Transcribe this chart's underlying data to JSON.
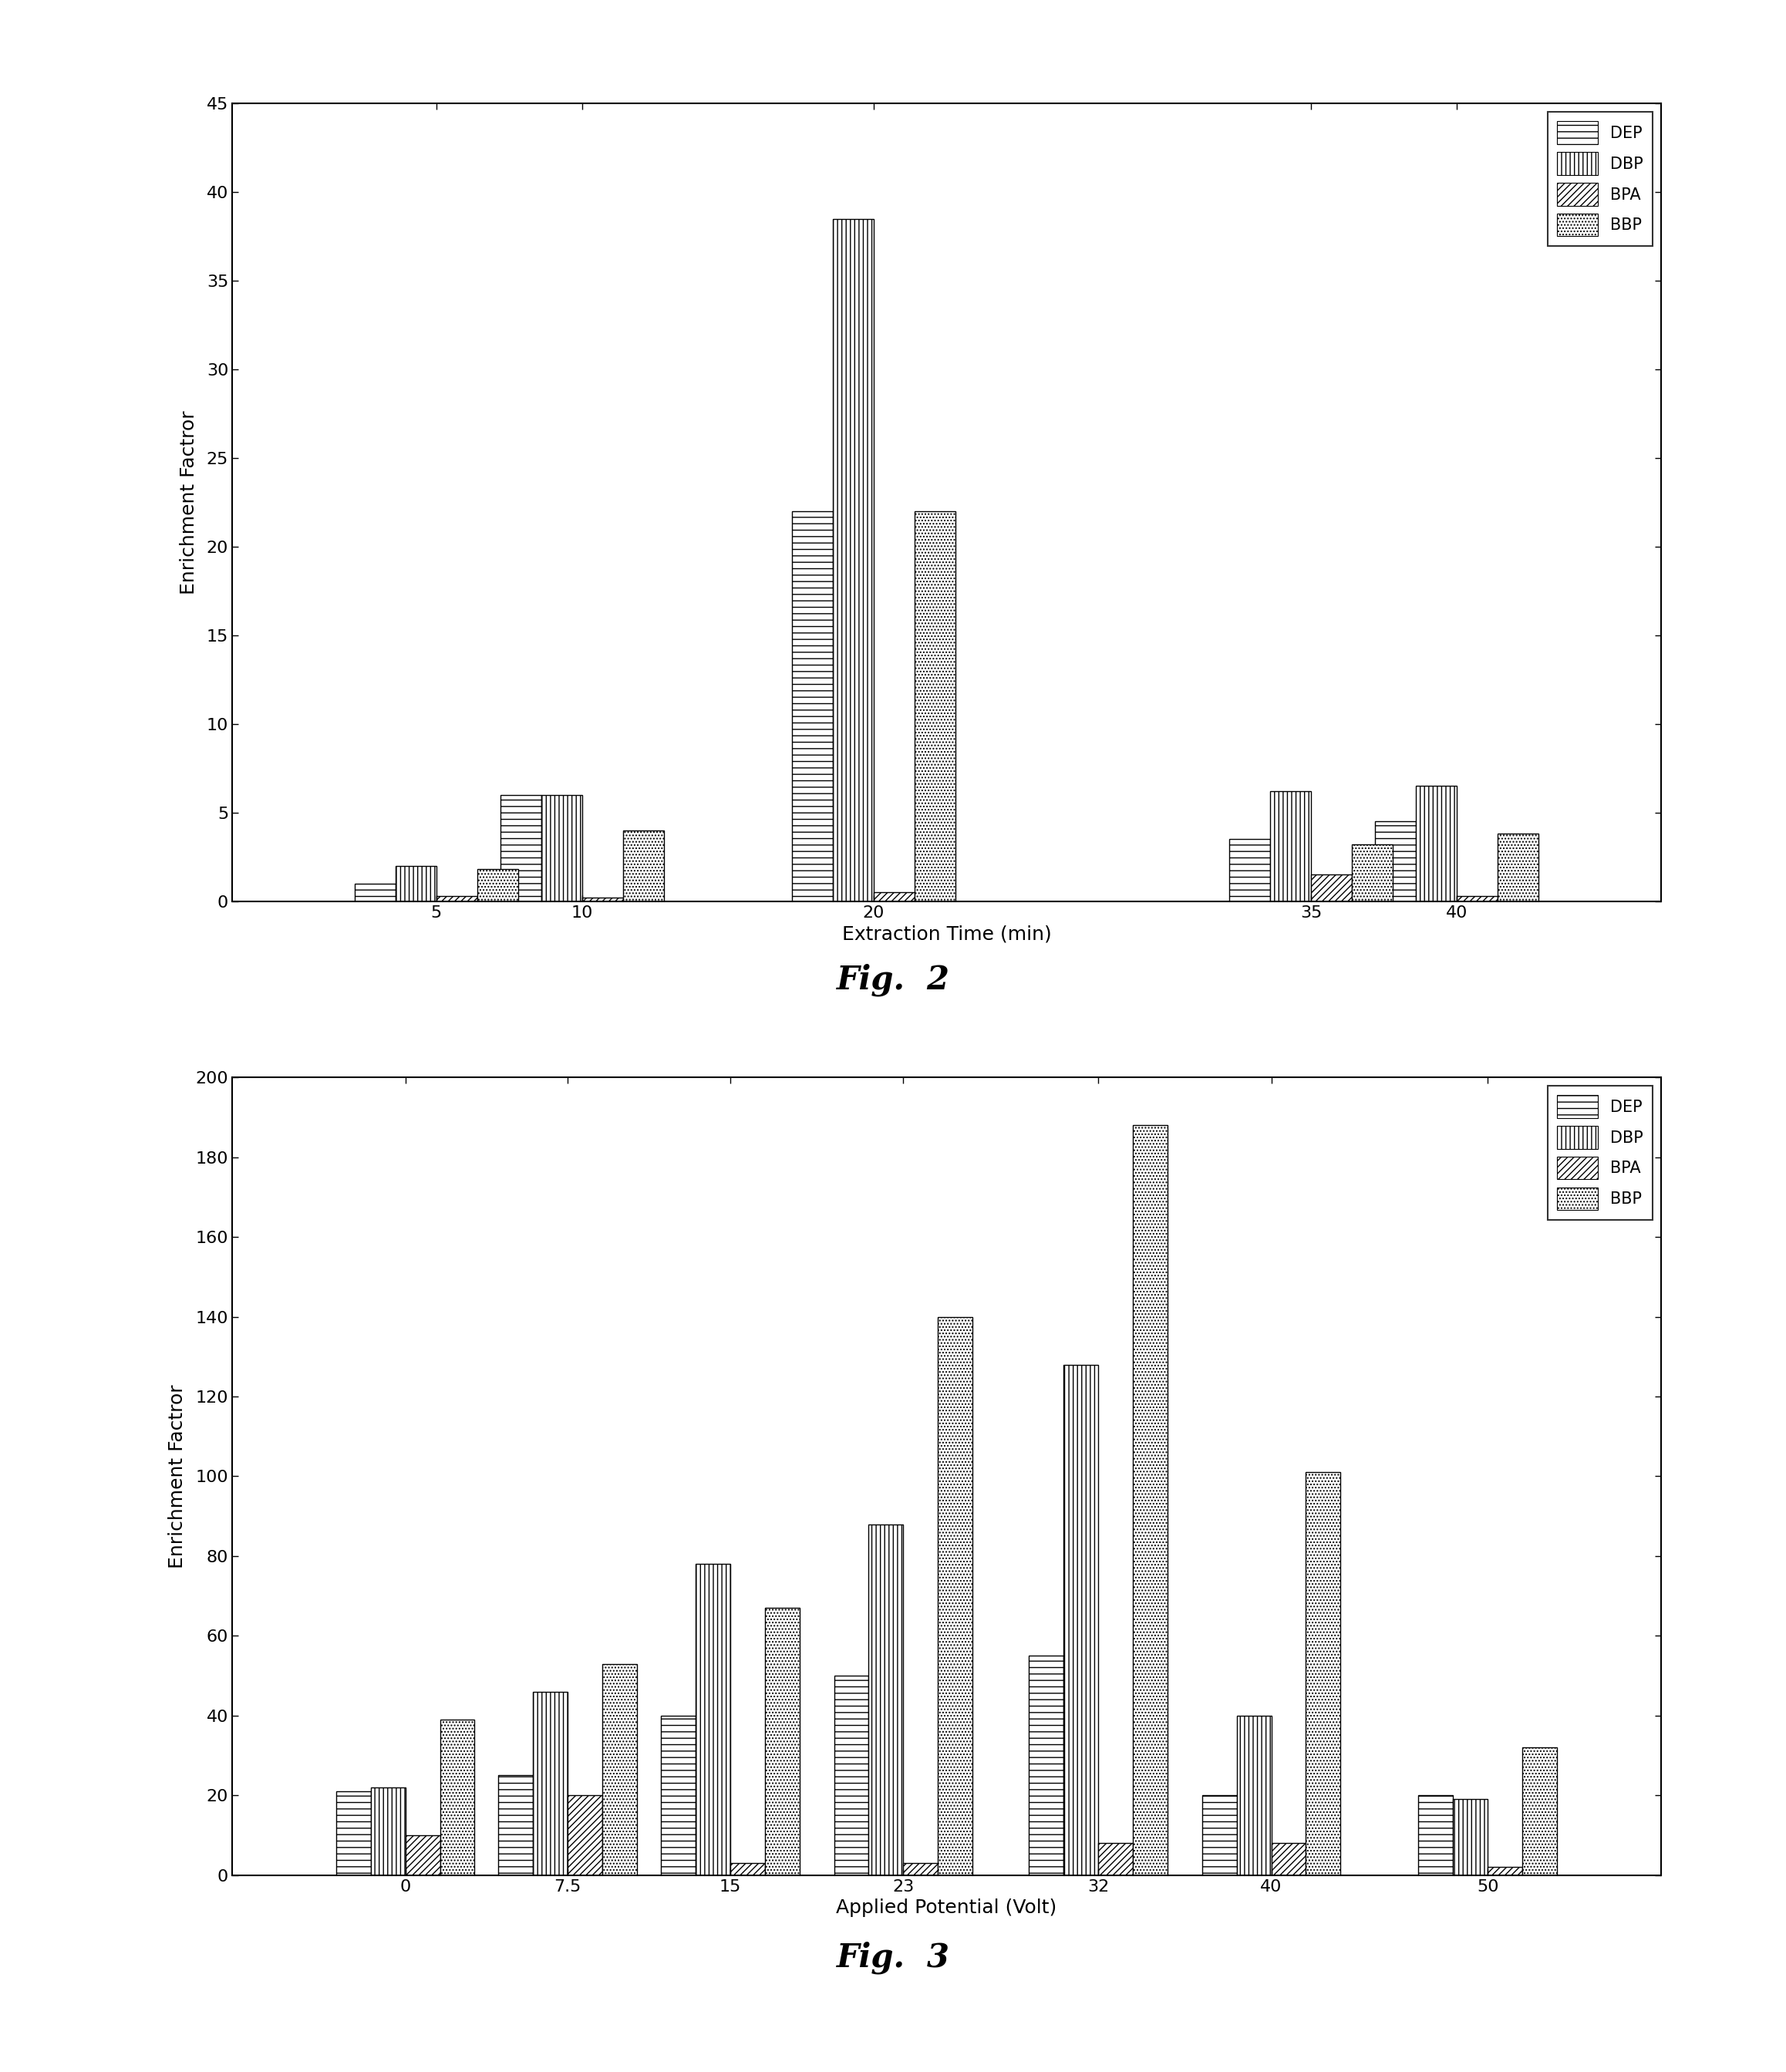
{
  "fig2": {
    "caption": "Fig.  2",
    "xlabel": "Extraction Time (min)",
    "ylabel": "Enrichment Factror",
    "ylim": [
      0,
      45
    ],
    "yticks": [
      0,
      5,
      10,
      15,
      20,
      25,
      30,
      35,
      40,
      45
    ],
    "xtick_labels": [
      "5",
      "10",
      "20",
      "35",
      "40"
    ],
    "cat_positions": [
      5,
      10,
      20,
      35,
      40
    ],
    "DEP": [
      1.0,
      6.0,
      22.0,
      3.5,
      4.5
    ],
    "DBP": [
      2.0,
      6.0,
      38.5,
      6.2,
      6.5
    ],
    "BPA": [
      0.3,
      0.2,
      0.5,
      1.5,
      0.3
    ],
    "BBP": [
      1.8,
      4.0,
      22.0,
      3.2,
      3.8
    ]
  },
  "fig3": {
    "caption": "Fig.  3",
    "xlabel": "Applied Potential (Volt)",
    "ylabel": "Enrichment Factror",
    "ylim": [
      0,
      200
    ],
    "yticks": [
      0,
      20,
      40,
      60,
      80,
      100,
      120,
      140,
      160,
      180,
      200
    ],
    "xtick_labels": [
      "0",
      "7.5",
      "15",
      "23",
      "32",
      "40",
      "50"
    ],
    "cat_positions": [
      0,
      7.5,
      15,
      23,
      32,
      40,
      50
    ],
    "DEP": [
      21.0,
      25.0,
      40.0,
      50.0,
      55.0,
      20.0,
      20.0
    ],
    "DBP": [
      22.0,
      46.0,
      78.0,
      88.0,
      128.0,
      40.0,
      19.0
    ],
    "BPA": [
      10.0,
      20.0,
      3.0,
      3.0,
      8.0,
      8.0,
      2.0
    ],
    "BBP": [
      39.0,
      53.0,
      67.0,
      140.0,
      188.0,
      101.0,
      32.0
    ]
  },
  "series_names": [
    "DEP",
    "DBP",
    "BPA",
    "BBP"
  ],
  "hatches": [
    "--",
    "|||",
    "////",
    "...."
  ],
  "font_size": 18,
  "tick_font_size": 16,
  "legend_font_size": 15,
  "caption_font_size": 30,
  "background": "#ffffff",
  "fig2_bar_width": 1.4,
  "fig3_bar_width": 1.6
}
